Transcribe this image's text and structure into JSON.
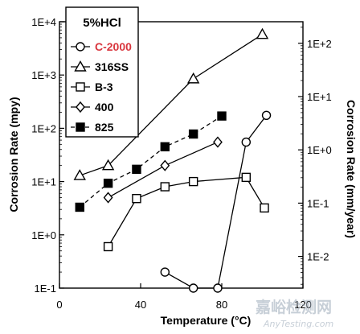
{
  "chart_data": {
    "type": "scatter",
    "title": "",
    "xlabel": "Temperature (°C)",
    "ylabel": "Corrosion Rate (mpy)",
    "y2label": "Corrosion Rate (mm/year)",
    "xlim": [
      0,
      120
    ],
    "ylim": [
      0.1,
      10000
    ],
    "yscale": "log",
    "y2scale": "log",
    "y2lim": [
      0.00254,
      254
    ],
    "grid": false,
    "x_ticks": [
      0,
      40,
      80,
      120
    ],
    "x_tick_labels": [
      "0",
      "40",
      "80",
      "120"
    ],
    "y_ticks": [
      0.1,
      1,
      10,
      100,
      1000,
      10000
    ],
    "y_tick_labels": [
      "1E-1",
      "1E+0",
      "1E+1",
      "1E+2",
      "1E+3",
      "1E+4"
    ],
    "y2_ticks": [
      0.01,
      0.1,
      1,
      10,
      100
    ],
    "y2_tick_labels": [
      "1E-2",
      "1E-1",
      "1E+0",
      "1E+1",
      "1E+2"
    ],
    "legend": {
      "title": "5%HCl",
      "placement": "top-left"
    },
    "series": [
      {
        "name": "C-2000",
        "marker": "circle-open",
        "line": "solid",
        "label_color": "#d9363e",
        "x": [
          52,
          66,
          78,
          92,
          102
        ],
        "y": [
          0.2,
          0.1,
          0.1,
          55,
          175
        ]
      },
      {
        "name": "316SS",
        "marker": "triangle-open",
        "line": "solid",
        "x": [
          10,
          24,
          66,
          100
        ],
        "y": [
          13,
          20,
          850,
          5800
        ]
      },
      {
        "name": "B-3",
        "marker": "square-open",
        "line": "solid",
        "x": [
          24,
          38,
          52,
          66,
          92,
          101
        ],
        "y": [
          0.6,
          4.8,
          8,
          10,
          12,
          3.2
        ]
      },
      {
        "name": "400",
        "marker": "diamond-open",
        "line": "solid",
        "x": [
          24,
          52,
          78
        ],
        "y": [
          5,
          20,
          55
        ]
      },
      {
        "name": "825",
        "marker": "square-filled",
        "line": "dashed",
        "x": [
          10,
          24,
          38,
          52,
          66,
          80
        ],
        "y": [
          3.3,
          9.3,
          17,
          45,
          78,
          170
        ]
      }
    ]
  },
  "watermark": {
    "text": "嘉峪检测网",
    "subtext": "AnyTesting.com"
  }
}
